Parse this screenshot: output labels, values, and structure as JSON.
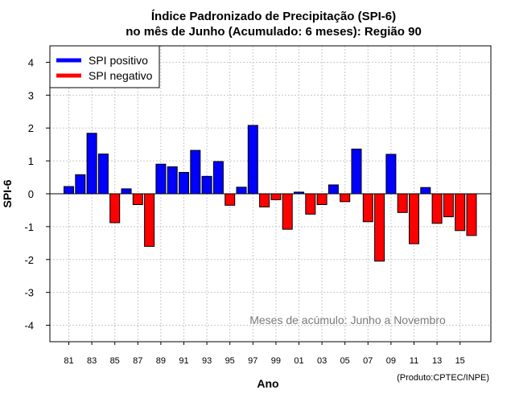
{
  "chart_data": {
    "type": "bar",
    "title": "Índice Padronizado de Precipitação (SPI-6)",
    "subtitle": "no mês de Junho (Acumulado: 6 meses): Região 90",
    "xlabel": "Ano",
    "ylabel": "SPI-6",
    "ylim": [
      -4.5,
      4.5
    ],
    "yticks": [
      -4,
      -3,
      -2,
      -1,
      0,
      1,
      2,
      3,
      4
    ],
    "x_tick_labels": [
      "81",
      "83",
      "85",
      "87",
      "89",
      "91",
      "93",
      "95",
      "97",
      "99",
      "01",
      "03",
      "05",
      "07",
      "09",
      "11",
      "13",
      "15"
    ],
    "grid": true,
    "categories": [
      "1981",
      "1982",
      "1983",
      "1984",
      "1985",
      "1986",
      "1987",
      "1988",
      "1989",
      "1990",
      "1991",
      "1992",
      "1993",
      "1994",
      "1995",
      "1996",
      "1997",
      "1998",
      "1999",
      "2000",
      "2001",
      "2002",
      "2003",
      "2004",
      "2005",
      "2006",
      "2007",
      "2008",
      "2009",
      "2010",
      "2011",
      "2012",
      "2013",
      "2014",
      "2015",
      "2016"
    ],
    "values": [
      0.22,
      0.58,
      1.84,
      1.21,
      -0.88,
      0.15,
      -0.33,
      -1.6,
      0.9,
      0.82,
      0.65,
      1.32,
      0.53,
      0.98,
      -0.35,
      0.2,
      2.08,
      -0.4,
      -0.18,
      -1.08,
      0.05,
      -0.62,
      -0.33,
      0.27,
      -0.24,
      1.36,
      -0.85,
      -2.05,
      1.2,
      -0.57,
      -1.52,
      0.19,
      -0.9,
      -0.7,
      -1.12,
      -1.27
    ],
    "legend": {
      "position": "top-left",
      "entries": [
        {
          "label": "SPI positivo",
          "color": "#0000ff"
        },
        {
          "label": "SPI negativo",
          "color": "#ff0000"
        }
      ]
    },
    "annotation": "Meses de acúmulo: Junho a Novembro",
    "credit": "(Produto:CPTEC/INPE)",
    "colors": {
      "positive": "#0000ff",
      "negative": "#ff0000",
      "grid": "#c8c8c8"
    }
  }
}
